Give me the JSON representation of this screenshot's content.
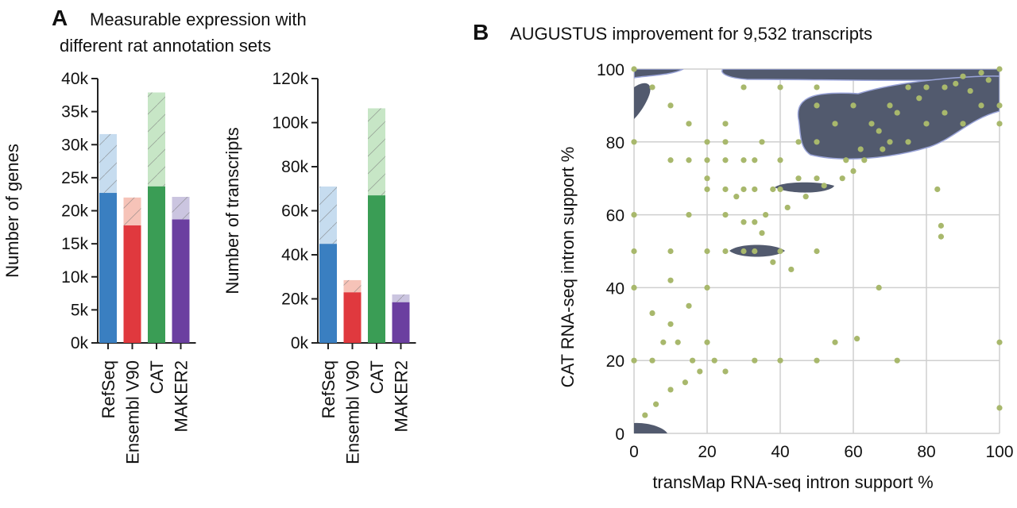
{
  "chart_data": [
    {
      "type": "bar",
      "panel": "A",
      "title": [
        "Measurable expression with",
        "different rat annotation sets"
      ],
      "ylabel": "Number of genes",
      "stacked": true,
      "categories": [
        "RefSeq",
        "Ensembl V90",
        "CAT",
        "MAKER2"
      ],
      "series": [
        {
          "values": [
            22700,
            17800,
            23700,
            18700
          ],
          "colors": [
            "#3a7fc1",
            "#e0393e",
            "#3a9d55",
            "#6b3fa0"
          ]
        },
        {
          "values": [
            8900,
            4200,
            14200,
            3400
          ],
          "colors": [
            "#c6dcef",
            "#f6c3b8",
            "#c7e6c6",
            "#cbc5e0"
          ],
          "hatch": true
        }
      ],
      "ylim": [
        0,
        40000
      ],
      "yticks": [
        {
          "value": 0,
          "label": "0k"
        },
        {
          "value": 5000,
          "label": "5k"
        },
        {
          "value": 10000,
          "label": "10k"
        },
        {
          "value": 15000,
          "label": "15k"
        },
        {
          "value": 20000,
          "label": "20k"
        },
        {
          "value": 25000,
          "label": "25k"
        },
        {
          "value": 30000,
          "label": "30k"
        },
        {
          "value": 35000,
          "label": "35k"
        },
        {
          "value": 40000,
          "label": "40k"
        }
      ]
    },
    {
      "type": "bar",
      "ylabel": "Number of transcripts",
      "stacked": true,
      "categories": [
        "RefSeq",
        "Ensembl V90",
        "CAT",
        "MAKER2"
      ],
      "series": [
        {
          "values": [
            45000,
            23000,
            67000,
            18500
          ],
          "colors": [
            "#3a7fc1",
            "#e0393e",
            "#3a9d55",
            "#6b3fa0"
          ]
        },
        {
          "values": [
            26000,
            5500,
            39500,
            3500
          ],
          "colors": [
            "#c6dcef",
            "#f6c3b8",
            "#c7e6c6",
            "#cbc5e0"
          ],
          "hatch": true
        }
      ],
      "ylim": [
        0,
        120000
      ],
      "yticks": [
        {
          "value": 0,
          "label": "0k"
        },
        {
          "value": 20000,
          "label": "20k"
        },
        {
          "value": 40000,
          "label": "40k"
        },
        {
          "value": 60000,
          "label": "60k"
        },
        {
          "value": 80000,
          "label": "80k"
        },
        {
          "value": 100000,
          "label": "100k"
        },
        {
          "value": 120000,
          "label": "120k"
        }
      ]
    },
    {
      "type": "scatter",
      "panel": "B",
      "title": "AUGUSTUS improvement for 9,532 transcripts",
      "xlabel": "transMap RNA-seq intron support %",
      "ylabel": "CAT RNA-seq intron support %",
      "color": "#a8b86c",
      "grid": true,
      "xlim": [
        0,
        100
      ],
      "ylim": [
        0,
        100
      ],
      "xticks": [
        0,
        20,
        40,
        60,
        80,
        100
      ],
      "yticks": [
        0,
        20,
        40,
        60,
        80,
        100
      ],
      "x": [
        0,
        5,
        10,
        15,
        20,
        25,
        30,
        33,
        35,
        40,
        45,
        50,
        50,
        50,
        55,
        60,
        65,
        70,
        75,
        80,
        85,
        90,
        95,
        100,
        67,
        62,
        58,
        72,
        78,
        88,
        92,
        97,
        45,
        40,
        38,
        33,
        30,
        25,
        20,
        50,
        33,
        30,
        25,
        20,
        40,
        43,
        38,
        35,
        30,
        25,
        20,
        15,
        10,
        5,
        8,
        12,
        16,
        20,
        22,
        18,
        14,
        10,
        6,
        3,
        0,
        0,
        0,
        0,
        0,
        10,
        10,
        15,
        20,
        25,
        28,
        33,
        36,
        42,
        47,
        52,
        57,
        60,
        63,
        68,
        70,
        75,
        80,
        83,
        84,
        84,
        67,
        100,
        72,
        50,
        61,
        55,
        100,
        40,
        25,
        33,
        50,
        40,
        30,
        25,
        20,
        15,
        10,
        5,
        100,
        100,
        95,
        90,
        85
      ],
      "values": [
        100,
        95,
        90,
        85,
        80,
        80,
        75,
        75,
        80,
        75,
        80,
        80,
        90,
        70,
        85,
        90,
        85,
        90,
        95,
        95,
        95,
        98,
        99,
        100,
        83,
        78,
        75,
        88,
        92,
        96,
        94,
        97,
        70,
        67,
        67,
        67,
        67,
        67,
        67,
        50,
        50,
        50,
        50,
        50,
        50,
        45,
        47,
        55,
        58,
        60,
        40,
        35,
        30,
        20,
        25,
        25,
        20,
        25,
        20,
        17,
        14,
        12,
        8,
        5,
        40,
        60,
        80,
        20,
        50,
        50,
        75,
        75,
        75,
        75,
        65,
        58,
        60,
        62,
        65,
        68,
        70,
        72,
        75,
        78,
        80,
        80,
        85,
        67,
        57,
        54,
        40,
        25,
        20,
        20,
        26,
        25,
        7,
        20,
        17,
        20,
        95,
        95,
        95,
        85,
        70,
        60,
        42,
        33,
        85,
        90,
        90,
        85,
        88
      ]
    }
  ]
}
